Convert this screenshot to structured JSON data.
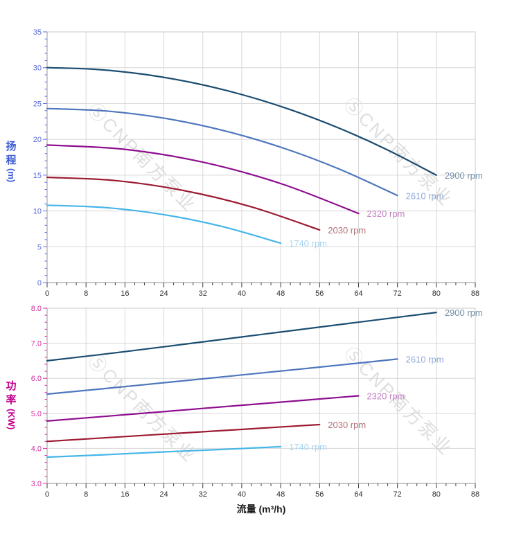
{
  "page": {
    "background": "#ffffff"
  },
  "watermark": {
    "logo_glyph": "Ⓢ",
    "text": "CNP南方泵业",
    "color": "#d6d6d6"
  },
  "axes_style": {
    "grid_color": "#d7d7d7",
    "border_color": "#c9c9c9",
    "axis_line_color": "#a8a8a8",
    "x_tick_color": "#3a3a3a",
    "x_label_color": "#2f2f2f",
    "x_title_color": "#1a1a1a"
  },
  "chart_data": [
    {
      "type": "line",
      "id": "head-chart",
      "title": "",
      "ylabel_chars": [
        "扬",
        "程"
      ],
      "ylabel_unit": "(m)",
      "xlabel": "",
      "xlim": [
        0,
        88
      ],
      "x_major": 8,
      "x_minor": 2,
      "ylim": [
        0,
        35
      ],
      "y_major": 5,
      "y_minor": 1,
      "y_decimals": 0,
      "grid": true,
      "legend_position": "curve-end-labels",
      "axis_title_color": "#3c5bd6",
      "axis_tick_color": "#5c6cd9",
      "series": [
        {
          "name": "2900 rpm",
          "color": "#1b4d71",
          "label_color": "#7590aa",
          "points": [
            [
              0,
              30.0
            ],
            [
              10,
              29.77
            ],
            [
              20,
              29.06
            ],
            [
              30,
              27.89
            ],
            [
              40,
              26.25
            ],
            [
              50,
              24.14
            ],
            [
              60,
              21.56
            ],
            [
              70,
              18.51
            ],
            [
              80,
              15.0
            ]
          ]
        },
        {
          "name": "2610 rpm",
          "color": "#4d76be",
          "label_color": "#93a9da",
          "points": [
            [
              0,
              24.3
            ],
            [
              12,
              23.96
            ],
            [
              24,
              22.95
            ],
            [
              36,
              21.26
            ],
            [
              48,
              18.9
            ],
            [
              60,
              15.86
            ],
            [
              72,
              12.15
            ]
          ]
        },
        {
          "name": "2320 rpm",
          "color": "#8e0d8e",
          "label_color": "#c47ec4",
          "points": [
            [
              0,
              19.2
            ],
            [
              16,
              18.6
            ],
            [
              32,
              16.81
            ],
            [
              48,
              13.83
            ],
            [
              64,
              9.65
            ]
          ]
        },
        {
          "name": "2030 rpm",
          "color": "#9c1b31",
          "label_color": "#b27077",
          "points": [
            [
              0,
              14.7
            ],
            [
              14,
              14.24
            ],
            [
              28,
              12.86
            ],
            [
              42,
              10.57
            ],
            [
              56,
              7.35
            ]
          ]
        },
        {
          "name": "1740 rpm",
          "color": "#45b5e8",
          "label_color": "#a3d5f2",
          "points": [
            [
              0,
              10.8
            ],
            [
              12,
              10.47
            ],
            [
              24,
              9.48
            ],
            [
              36,
              7.82
            ],
            [
              48,
              5.5
            ]
          ]
        }
      ]
    },
    {
      "type": "line",
      "id": "power-chart",
      "title": "",
      "ylabel_chars": [
        "功",
        "率"
      ],
      "ylabel_unit": "(KW)",
      "xlabel": "流量 (m³/h)",
      "xlim": [
        0,
        88
      ],
      "x_major": 8,
      "x_minor": 2,
      "ylim": [
        3.0,
        8.0
      ],
      "y_major": 1,
      "y_minor": 0.2,
      "y_decimals": 1,
      "grid": true,
      "legend_position": "curve-end-labels",
      "axis_title_color": "#c1008f",
      "axis_tick_color": "#cf2fa0",
      "series": [
        {
          "name": "2900 rpm",
          "color": "#1b4d71",
          "label_color": "#7590aa",
          "points": [
            [
              0,
              6.5
            ],
            [
              16,
              6.76
            ],
            [
              32,
              7.04
            ],
            [
              48,
              7.32
            ],
            [
              64,
              7.6
            ],
            [
              80,
              7.88
            ]
          ]
        },
        {
          "name": "2610 rpm",
          "color": "#4d76be",
          "label_color": "#93a9da",
          "points": [
            [
              0,
              5.55
            ],
            [
              18,
              5.79
            ],
            [
              36,
              6.04
            ],
            [
              54,
              6.29
            ],
            [
              72,
              6.55
            ]
          ]
        },
        {
          "name": "2320 rpm",
          "color": "#8e0d8e",
          "label_color": "#c47ec4",
          "points": [
            [
              0,
              4.78
            ],
            [
              16,
              4.96
            ],
            [
              32,
              5.14
            ],
            [
              48,
              5.32
            ],
            [
              64,
              5.5
            ]
          ]
        },
        {
          "name": "2030 rpm",
          "color": "#9c1b31",
          "label_color": "#b27077",
          "points": [
            [
              0,
              4.2
            ],
            [
              14,
              4.32
            ],
            [
              28,
              4.44
            ],
            [
              42,
              4.56
            ],
            [
              56,
              4.68
            ]
          ]
        },
        {
          "name": "1740 rpm",
          "color": "#45b5e8",
          "label_color": "#a3d5f2",
          "points": [
            [
              0,
              3.75
            ],
            [
              12,
              3.82
            ],
            [
              24,
              3.9
            ],
            [
              36,
              3.97
            ],
            [
              48,
              4.05
            ]
          ]
        }
      ]
    }
  ]
}
